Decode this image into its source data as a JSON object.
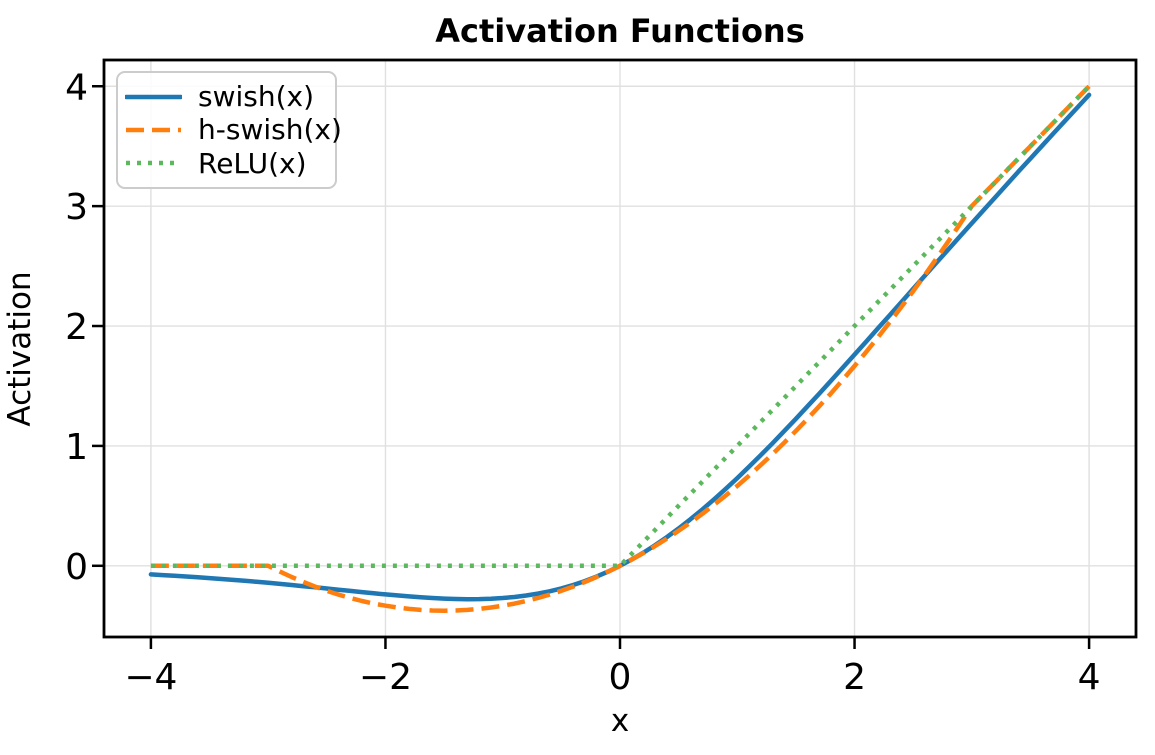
{
  "chart_data": {
    "type": "line",
    "title": "Activation Functions",
    "xlabel": "x",
    "ylabel": "Activation",
    "xlim": [
      -4.4,
      4.4
    ],
    "ylim": [
      -0.594,
      4.219
    ],
    "grid": true,
    "grid_color": "#e0e0e0",
    "legend_position": "upper left",
    "xticks": {
      "values": [
        -4,
        -2,
        0,
        2,
        4
      ],
      "labels": [
        "−4",
        "−2",
        "0",
        "2",
        "4"
      ]
    },
    "yticks": {
      "values": [
        0,
        1,
        2,
        3,
        4
      ],
      "labels": [
        "0",
        "1",
        "2",
        "3",
        "4"
      ]
    },
    "x": [
      -4,
      -3.9,
      -3.8,
      -3.7,
      -3.6,
      -3.5,
      -3.4,
      -3.3,
      -3.2,
      -3.1,
      -3,
      -2.9,
      -2.8,
      -2.7,
      -2.6,
      -2.5,
      -2.4,
      -2.3,
      -2.2,
      -2.1,
      -2,
      -1.9,
      -1.8,
      -1.7,
      -1.6,
      -1.5,
      -1.4,
      -1.3,
      -1.2,
      -1.1,
      -1,
      -0.9,
      -0.8,
      -0.7,
      -0.6,
      -0.5,
      -0.4,
      -0.3,
      -0.2,
      -0.1,
      0,
      0.1,
      0.2,
      0.3,
      0.4,
      0.5,
      0.6,
      0.7,
      0.8,
      0.9,
      1,
      1.1,
      1.2,
      1.3,
      1.4,
      1.5,
      1.6,
      1.7,
      1.8,
      1.9,
      2,
      2.1,
      2.2,
      2.3,
      2.4,
      2.5,
      2.6,
      2.7,
      2.8,
      2.9,
      3,
      3.1,
      3.2,
      3.3,
      3.4,
      3.5,
      3.6,
      3.7,
      3.8,
      3.9,
      4
    ],
    "series": [
      {
        "name": "swish(x)",
        "color": "#1f77b4",
        "style": "solid",
        "linewidth": 4.5,
        "values": [
          -0.0719,
          -0.0774,
          -0.0831,
          -0.0893,
          -0.0957,
          -0.1026,
          -0.1098,
          -0.1174,
          -0.1253,
          -0.1336,
          -0.1423,
          -0.1512,
          -0.1605,
          -0.17,
          -0.1798,
          -0.1896,
          -0.1996,
          -0.2096,
          -0.2195,
          -0.2291,
          -0.2384,
          -0.2472,
          -0.2553,
          -0.2626,
          -0.2688,
          -0.2736,
          -0.2769,
          -0.2784,
          -0.2778,
          -0.2747,
          -0.2689,
          -0.2601,
          -0.248,
          -0.2323,
          -0.2126,
          -0.1888,
          -0.1605,
          -0.1277,
          -0.09,
          -0.0475,
          0,
          0.0525,
          0.11,
          0.1723,
          0.2395,
          0.3112,
          0.3874,
          0.4677,
          0.552,
          0.6399,
          0.7311,
          0.8253,
          0.9222,
          1.0216,
          1.1231,
          1.2264,
          1.3312,
          1.4374,
          1.5447,
          1.6528,
          1.7616,
          1.8709,
          1.9806,
          2.0904,
          2.2004,
          2.3104,
          2.4202,
          2.53,
          2.6395,
          2.7488,
          2.8577,
          2.9664,
          3.0747,
          3.1826,
          3.2902,
          3.3974,
          3.5043,
          3.6107,
          3.7169,
          3.8226,
          3.9281
        ]
      },
      {
        "name": "h-swish(x)",
        "color": "#ff7f0e",
        "style": "dashed",
        "linewidth": 4.5,
        "values": [
          0,
          0,
          0,
          0,
          0,
          0,
          0,
          0,
          0,
          0,
          0,
          -0.0483,
          -0.0933,
          -0.135,
          -0.1733,
          -0.2083,
          -0.24,
          -0.2683,
          -0.2933,
          -0.315,
          -0.3333,
          -0.3483,
          -0.36,
          -0.3683,
          -0.3733,
          -0.375,
          -0.3733,
          -0.3683,
          -0.36,
          -0.3483,
          -0.3333,
          -0.315,
          -0.2933,
          -0.2683,
          -0.24,
          -0.2083,
          -0.1733,
          -0.135,
          -0.0933,
          -0.0483,
          0,
          0.0517,
          0.1067,
          0.165,
          0.2267,
          0.2917,
          0.36,
          0.4317,
          0.5067,
          0.585,
          0.6667,
          0.7517,
          0.84,
          0.9317,
          1.0267,
          1.125,
          1.2267,
          1.3317,
          1.44,
          1.5517,
          1.6667,
          1.785,
          1.9067,
          2.0317,
          2.16,
          2.2917,
          2.4267,
          2.565,
          2.7067,
          2.8517,
          3,
          3.1,
          3.2,
          3.3,
          3.4,
          3.5,
          3.6,
          3.7,
          3.8,
          3.9,
          4
        ]
      },
      {
        "name": "ReLU(x)",
        "color": "#5cb85c",
        "style": "dotted",
        "linewidth": 4.5,
        "values": [
          0,
          0,
          0,
          0,
          0,
          0,
          0,
          0,
          0,
          0,
          0,
          0,
          0,
          0,
          0,
          0,
          0,
          0,
          0,
          0,
          0,
          0,
          0,
          0,
          0,
          0,
          0,
          0,
          0,
          0,
          0,
          0,
          0,
          0,
          0,
          0,
          0,
          0,
          0,
          0,
          0,
          0.1,
          0.2,
          0.3,
          0.4,
          0.5,
          0.6,
          0.7,
          0.8,
          0.9,
          1,
          1.1,
          1.2,
          1.3,
          1.4,
          1.5,
          1.6,
          1.7,
          1.8,
          1.9,
          2,
          2.1,
          2.2,
          2.3,
          2.4,
          2.5,
          2.6,
          2.7,
          2.8,
          2.9,
          3,
          3.1,
          3.2,
          3.3,
          3.4,
          3.5,
          3.6,
          3.7,
          3.8,
          3.9,
          4
        ]
      }
    ]
  }
}
